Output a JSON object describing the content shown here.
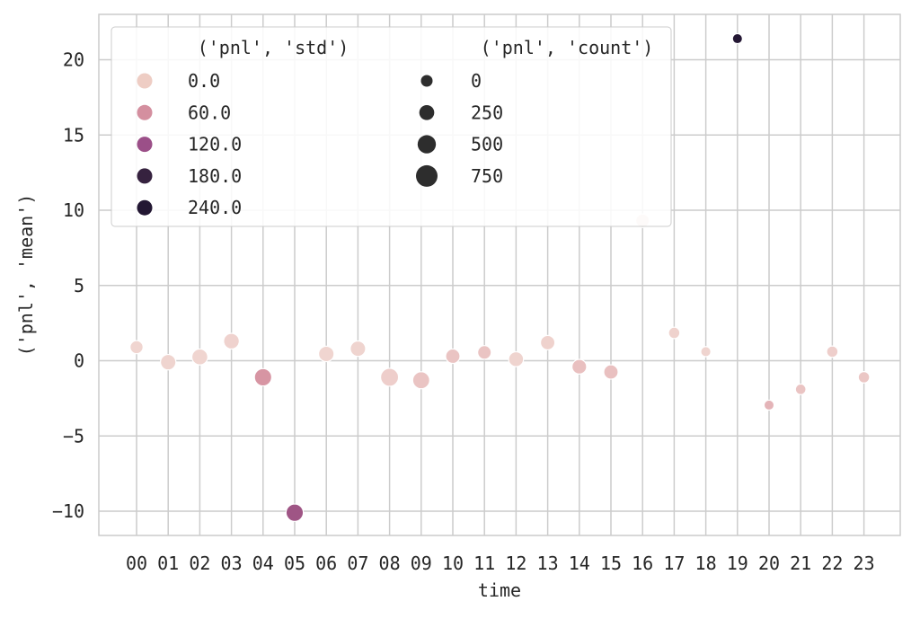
{
  "chart_data": {
    "type": "scatter",
    "xlabel": "time",
    "ylabel": "('pnl', 'mean')",
    "categories": [
      "00",
      "01",
      "02",
      "03",
      "04",
      "05",
      "06",
      "07",
      "08",
      "09",
      "10",
      "11",
      "12",
      "13",
      "14",
      "15",
      "16",
      "17",
      "18",
      "19",
      "20",
      "21",
      "22",
      "23"
    ],
    "ylim": [
      -11.8,
      23.0
    ],
    "yticks": [
      -10,
      -5,
      0,
      5,
      10,
      15,
      20
    ],
    "ytick_labels": [
      "−10",
      "−5",
      "0",
      "5",
      "10",
      "15",
      "20"
    ],
    "grid": true,
    "legend_placement": "upper-left",
    "points": [
      {
        "x": "00",
        "y": 0.9,
        "std": 10,
        "count": 380
      },
      {
        "x": "01",
        "y": -0.1,
        "std": 12,
        "count": 560
      },
      {
        "x": "02",
        "y": 0.25,
        "std": 10,
        "count": 600
      },
      {
        "x": "03",
        "y": 1.3,
        "std": 14,
        "count": 580
      },
      {
        "x": "04",
        "y": -1.1,
        "std": 75,
        "count": 700
      },
      {
        "x": "05",
        "y": -10.1,
        "std": 125,
        "count": 700
      },
      {
        "x": "06",
        "y": 0.45,
        "std": 10,
        "count": 560
      },
      {
        "x": "07",
        "y": 0.8,
        "std": 12,
        "count": 560
      },
      {
        "x": "08",
        "y": -1.1,
        "std": 20,
        "count": 760
      },
      {
        "x": "09",
        "y": -1.3,
        "std": 35,
        "count": 680
      },
      {
        "x": "10",
        "y": 0.3,
        "std": 35,
        "count": 480
      },
      {
        "x": "11",
        "y": 0.55,
        "std": 35,
        "count": 420
      },
      {
        "x": "12",
        "y": 0.1,
        "std": 12,
        "count": 520
      },
      {
        "x": "13",
        "y": 1.2,
        "std": 15,
        "count": 480
      },
      {
        "x": "14",
        "y": -0.4,
        "std": 40,
        "count": 500
      },
      {
        "x": "15",
        "y": -0.75,
        "std": 40,
        "count": 480
      },
      {
        "x": "16",
        "y": 9.3,
        "std": 2,
        "count": 420
      },
      {
        "x": "17",
        "y": 1.85,
        "std": 15,
        "count": 250
      },
      {
        "x": "18",
        "y": 0.6,
        "std": 12,
        "count": 160
      },
      {
        "x": "19",
        "y": 21.4,
        "std": 235,
        "count": 150
      },
      {
        "x": "20",
        "y": -2.95,
        "std": 50,
        "count": 150
      },
      {
        "x": "21",
        "y": -1.9,
        "std": 35,
        "count": 190
      },
      {
        "x": "22",
        "y": 0.6,
        "std": 20,
        "count": 250
      },
      {
        "x": "23",
        "y": -1.1,
        "std": 30,
        "count": 250
      }
    ],
    "hue_scale": {
      "min": 0,
      "max": 240,
      "colors": [
        "#f2dcd5",
        "#e9c0c0",
        "#d48f9f",
        "#a85a8a",
        "#5c2e63",
        "#2b1a3c",
        "#231733"
      ]
    },
    "size_scale": {
      "count_min": 0,
      "count_max": 750
    },
    "legend": {
      "hue_title": "('pnl', 'std')",
      "hue_entries": [
        {
          "label": "0.0",
          "value": 0,
          "color": "#eecdc4"
        },
        {
          "label": "60.0",
          "value": 60,
          "color": "#d48f9f"
        },
        {
          "label": "120.0",
          "value": 120,
          "color": "#9b4f88"
        },
        {
          "label": "180.0",
          "value": 180,
          "color": "#36223f"
        },
        {
          "label": "240.0",
          "value": 240,
          "color": "#231733"
        }
      ],
      "size_title": "('pnl', 'count')",
      "size_entries": [
        {
          "label": "0",
          "value": 0
        },
        {
          "label": "250",
          "value": 250
        },
        {
          "label": "500",
          "value": 500
        },
        {
          "label": "750",
          "value": 750
        }
      ],
      "size_color": "#2d2d2d"
    },
    "colors": {
      "grid": "#cccccc",
      "axis_text": "#262626",
      "point_edge": "#ffffff",
      "legend_bg": "#ffffff",
      "legend_edge": "#cccccc"
    }
  }
}
